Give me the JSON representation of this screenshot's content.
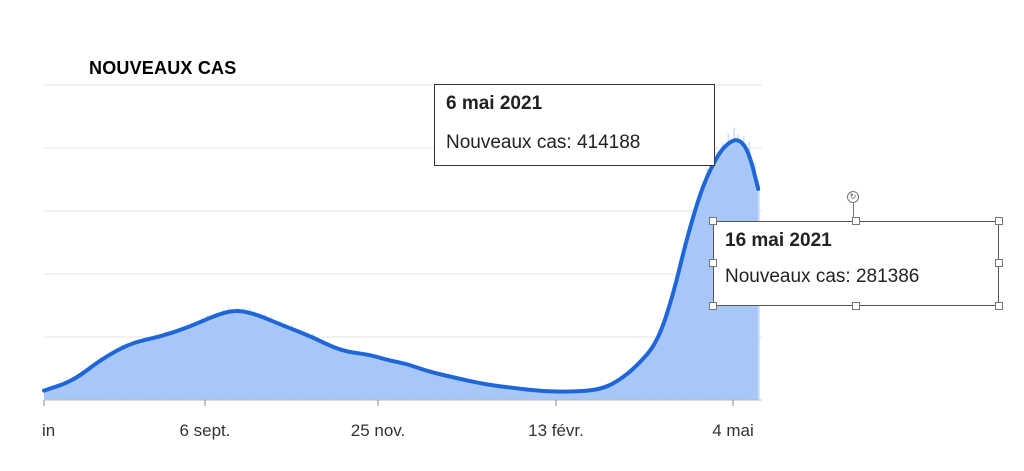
{
  "chart_data": {
    "type": "area",
    "title": "NOUVEAUX CAS",
    "xlabel": "",
    "ylabel": "",
    "x_tick_labels": [
      "in",
      "6 sept.",
      "25 nov.",
      "13 févr.",
      "4 mai"
    ],
    "ylim": [
      0,
      500000
    ],
    "grid": "horizontal",
    "series": [
      {
        "values": [
          [
            0,
            15000
          ],
          [
            15,
            30000
          ],
          [
            30,
            65000
          ],
          [
            45,
            90000
          ],
          [
            60,
            100000
          ],
          [
            75,
            115000
          ],
          [
            90,
            135000
          ],
          [
            100,
            143000
          ],
          [
            110,
            137000
          ],
          [
            125,
            118000
          ],
          [
            140,
            100000
          ],
          [
            155,
            78000
          ],
          [
            170,
            72000
          ],
          [
            180,
            63000
          ],
          [
            190,
            57000
          ],
          [
            200,
            46000
          ],
          [
            215,
            35000
          ],
          [
            230,
            25000
          ],
          [
            245,
            19000
          ],
          [
            260,
            14000
          ],
          [
            275,
            13000
          ],
          [
            290,
            16000
          ],
          [
            300,
            30000
          ],
          [
            310,
            55000
          ],
          [
            320,
            90000
          ],
          [
            328,
            160000
          ],
          [
            336,
            260000
          ],
          [
            344,
            340000
          ],
          [
            352,
            390000
          ],
          [
            358,
            410000
          ],
          [
            363,
            414188
          ],
          [
            368,
            395000
          ],
          [
            373,
            335000
          ]
        ]
      }
    ],
    "tooltips": [
      {
        "date": "6 mai 2021",
        "label": "Nouveaux cas: 414188"
      },
      {
        "date": "16 mai 2021",
        "label": "Nouveaux cas: 281386"
      }
    ],
    "colors": {
      "line": "#1f67d8",
      "area": "#aecbfa",
      "grid": "#e6e6e6"
    }
  }
}
